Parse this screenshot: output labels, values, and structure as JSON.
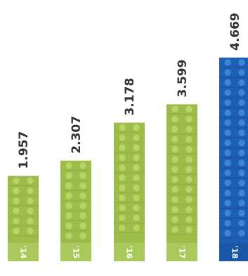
{
  "chart_data": {
    "type": "bar",
    "categories": [
      "'14",
      "'15",
      "'16",
      "'17",
      "'18"
    ],
    "values": [
      1.957,
      2.307,
      3.178,
      3.599,
      4.669
    ],
    "value_labels": [
      "1.957",
      "2.307",
      "3.178",
      "3.599",
      "4.669"
    ],
    "ylim": [
      0,
      4.669
    ],
    "title": "",
    "xlabel": "",
    "ylabel": "",
    "grid": false,
    "colors": {
      "green_bar": "#9dbd4b",
      "green_stud": "#b8d36a",
      "green_base": "#a9c95d",
      "blue_bar": "#1d5fb5",
      "blue_stud": "#3a86d8",
      "blue_base": "#1a57a8",
      "value_text": "#333333",
      "year_text": "#ffffff"
    },
    "highlight_index": 4
  }
}
